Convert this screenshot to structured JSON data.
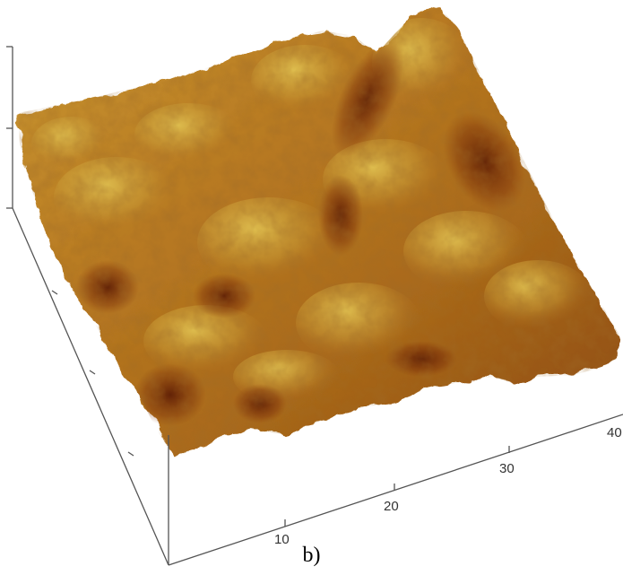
{
  "caption": "b)",
  "x_axis": {
    "tick_labels": [
      "10",
      "20",
      "30",
      "40"
    ]
  },
  "colors": {
    "surface_dark": "#6b2406",
    "surface_mid": "#b5721c",
    "surface_light": "#d8b544",
    "axis": "#555555"
  }
}
